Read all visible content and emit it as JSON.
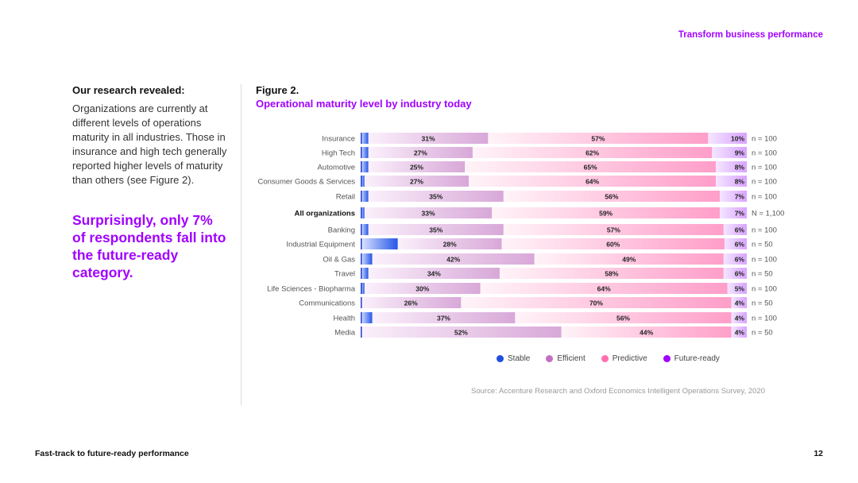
{
  "header": {
    "section": "Transform business performance"
  },
  "left": {
    "heading": "Our research revealed:",
    "body": "Organizations are currently at different levels of operations maturity in all industries. Those in insurance and high tech generally reported higher levels of maturity than others (see Figure 2).",
    "callout": "Surprisingly, only 7% of respondents fall into the future-ready category."
  },
  "figure": {
    "number": "Figure 2.",
    "title": "Operational maturity level by industry today"
  },
  "chart_data": {
    "type": "bar",
    "orientation": "horizontal",
    "stacked": true,
    "normalized_100": true,
    "title": "Operational maturity level by industry today",
    "categories": [
      "Insurance",
      "High Tech",
      "Automotive",
      "Consumer Goods & Services",
      "Retail",
      "All organizations",
      "Banking",
      "Industrial Equipment",
      "Oil & Gas",
      "Travel",
      "Life Sciences - Biopharma",
      "Communications",
      "Health",
      "Media"
    ],
    "highlight_category": "All organizations",
    "sample_sizes": [
      "n = 100",
      "n = 100",
      "n = 100",
      "n = 100",
      "n = 100",
      "N = 1,100",
      "n = 100",
      "n = 50",
      "n = 100",
      "n = 50",
      "n = 100",
      "n = 50",
      "n = 100",
      "n = 50"
    ],
    "series": [
      {
        "name": "Stable",
        "values": [
          2,
          2,
          2,
          1,
          2,
          1,
          2,
          10,
          3,
          2,
          1,
          0,
          3,
          0
        ]
      },
      {
        "name": "Efficient",
        "values": [
          31,
          27,
          25,
          27,
          35,
          33,
          35,
          28,
          42,
          34,
          30,
          26,
          37,
          52
        ]
      },
      {
        "name": "Predictive",
        "values": [
          57,
          62,
          65,
          64,
          56,
          59,
          57,
          60,
          49,
          58,
          64,
          70,
          56,
          44
        ]
      },
      {
        "name": "Future-ready",
        "values": [
          10,
          9,
          8,
          8,
          7,
          7,
          6,
          6,
          6,
          6,
          5,
          4,
          4,
          4
        ]
      }
    ]
  },
  "legend": [
    {
      "name": "Stable",
      "color": "#1f4fe0"
    },
    {
      "name": "Efficient",
      "color": "#c36fc0"
    },
    {
      "name": "Predictive",
      "color": "#ff6fb0"
    },
    {
      "name": "Future-ready",
      "color": "#a100ff"
    }
  ],
  "source": "Source: Accenture Research and Oxford Economics Intelligent Operations Survey, 2020",
  "footer": {
    "title": "Fast-track to future-ready performance",
    "page": "12"
  }
}
